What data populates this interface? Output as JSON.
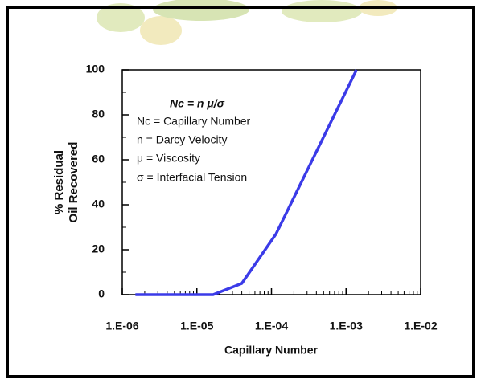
{
  "chart_data": {
    "type": "line",
    "xlabel": "Capillary Number",
    "ylabel": [
      "% Residual",
      "Oil Recovered"
    ],
    "annotations": [
      "Nc = n μ/σ",
      "Nc = Capillary Number",
      "n  = Darcy Velocity",
      "μ = Viscosity",
      "σ = Interfacial Tension"
    ],
    "xscale": "log",
    "xlim": [
      1e-06,
      0.01
    ],
    "xticks": [
      {
        "value": 1e-06,
        "label": "1.E-06"
      },
      {
        "value": 1e-05,
        "label": "1.E-05"
      },
      {
        "value": 0.0001,
        "label": "1.E-04"
      },
      {
        "value": 0.001,
        "label": "1.E-03"
      },
      {
        "value": 0.01,
        "label": "1.E-02"
      }
    ],
    "ylim": [
      0,
      100
    ],
    "yticks": [
      0,
      20,
      40,
      60,
      80,
      100
    ],
    "series": [
      {
        "color": "#3b3be8",
        "x": [
          1.5e-06,
          1.65e-05,
          4e-05,
          0.000115,
          0.00138
        ],
        "values": [
          0,
          0,
          5,
          27,
          100
        ]
      }
    ]
  }
}
